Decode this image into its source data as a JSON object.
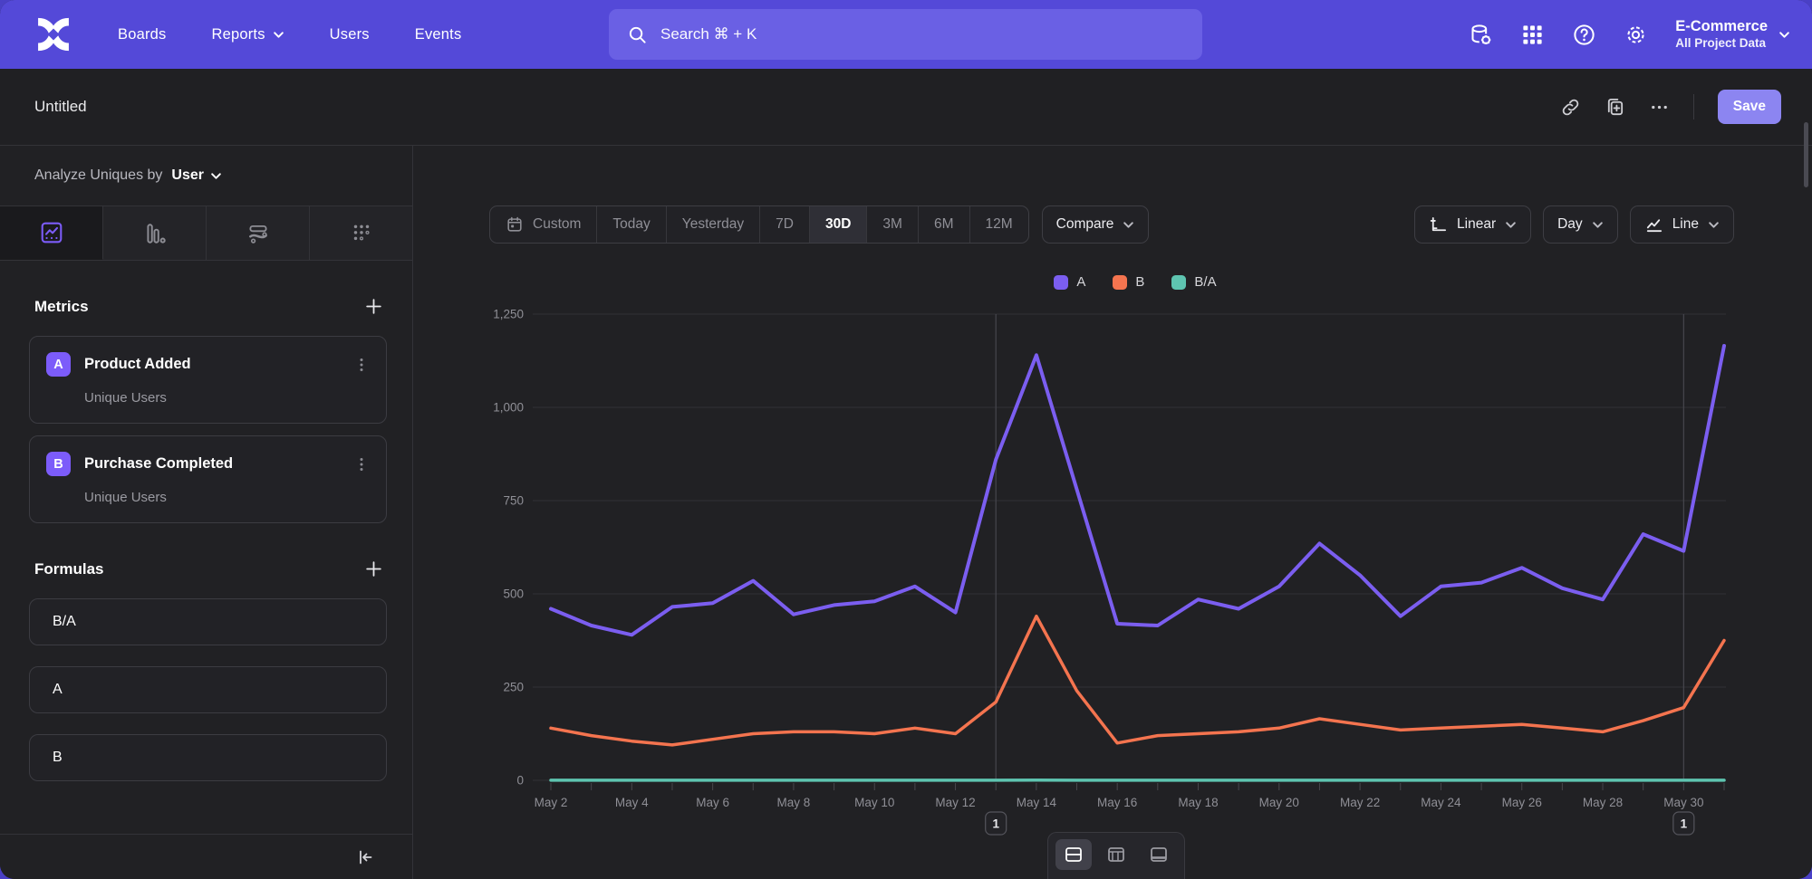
{
  "nav": {
    "items": [
      {
        "label": "Boards",
        "has_dropdown": false
      },
      {
        "label": "Reports",
        "has_dropdown": true
      },
      {
        "label": "Users",
        "has_dropdown": false
      },
      {
        "label": "Events",
        "has_dropdown": false
      }
    ],
    "search_placeholder": "Search  ⌘ + K",
    "right_icons": [
      "data-management-icon",
      "apps-grid-icon",
      "help-icon",
      "settings-gear-icon"
    ],
    "project": {
      "name": "E-Commerce",
      "scope": "All Project Data"
    }
  },
  "header": {
    "title": "Untitled",
    "action_icons": [
      "copy-link-icon",
      "duplicate-icon",
      "more-ellipsis-icon"
    ],
    "save_label": "Save"
  },
  "sidebar": {
    "analyze_prefix": "Analyze Uniques by",
    "analyze_value": "User",
    "chart_type_tabs": [
      "insights-line",
      "bar",
      "flows",
      "retention-dots"
    ],
    "selected_tab": 0,
    "metrics": {
      "title": "Metrics",
      "items": [
        {
          "letter": "A",
          "name": "Product Added",
          "subtitle": "Unique Users"
        },
        {
          "letter": "B",
          "name": "Purchase Completed",
          "subtitle": "Unique Users"
        }
      ]
    },
    "formulas": {
      "title": "Formulas",
      "items": [
        "B/A",
        "A",
        "B"
      ]
    }
  },
  "controls": {
    "date_ranges": [
      "Custom",
      "Today",
      "Yesterday",
      "7D",
      "30D",
      "3M",
      "6M",
      "12M"
    ],
    "selected_range": "30D",
    "compare_label": "Compare",
    "scale_label": "Linear",
    "interval_label": "Day",
    "chart_type_label": "Line"
  },
  "bottom_toolbar": {
    "views": [
      "chart-and-table-view",
      "table-view",
      "chart-only-view"
    ],
    "selected": 0
  },
  "colors": {
    "nav_purple": "#5449d8",
    "accent_purple": "#7b5ef0",
    "series_orange": "#f4744f",
    "series_teal": "#5ec4b0",
    "save_button": "#8c85f1"
  },
  "chart_data": {
    "type": "line",
    "x": [
      "May 2",
      "May 3",
      "May 4",
      "May 5",
      "May 6",
      "May 7",
      "May 8",
      "May 9",
      "May 10",
      "May 11",
      "May 12",
      "May 13",
      "May 14",
      "May 15",
      "May 16",
      "May 17",
      "May 18",
      "May 19",
      "May 20",
      "May 21",
      "May 22",
      "May 23",
      "May 24",
      "May 25",
      "May 26",
      "May 27",
      "May 28",
      "May 29",
      "May 30",
      "May 31"
    ],
    "label_every": 2,
    "ylim": [
      0,
      1250
    ],
    "yticks": [
      0,
      250,
      500,
      750,
      1000,
      1250
    ],
    "grid": true,
    "legend_position": "top-center",
    "series": [
      {
        "name": "A",
        "metric": "Product Added — Unique Users",
        "color": "#7b5ef0",
        "values": [
          460,
          415,
          390,
          465,
          475,
          535,
          445,
          470,
          480,
          520,
          450,
          860,
          1140,
          780,
          420,
          415,
          485,
          460,
          520,
          635,
          550,
          440,
          520,
          530,
          570,
          515,
          485,
          660,
          615,
          1165
        ]
      },
      {
        "name": "B",
        "metric": "Purchase Completed — Unique Users",
        "color": "#f4744f",
        "values": [
          140,
          120,
          105,
          95,
          110,
          125,
          130,
          130,
          125,
          140,
          125,
          210,
          440,
          240,
          100,
          120,
          125,
          130,
          140,
          165,
          150,
          135,
          140,
          145,
          150,
          140,
          130,
          160,
          195,
          375
        ]
      },
      {
        "name": "B/A",
        "metric": "Formula B/A (ratio, plotted near zero on this scale)",
        "color": "#5ec4b0",
        "values": [
          0.3,
          0.29,
          0.27,
          0.2,
          0.23,
          0.23,
          0.29,
          0.28,
          0.26,
          0.27,
          0.28,
          0.24,
          0.39,
          0.31,
          0.24,
          0.29,
          0.26,
          0.28,
          0.27,
          0.26,
          0.27,
          0.31,
          0.27,
          0.27,
          0.26,
          0.27,
          0.27,
          0.24,
          0.32,
          0.32
        ]
      }
    ],
    "annotations": [
      {
        "label": "1",
        "x": "May 13"
      },
      {
        "label": "1",
        "x": "May 30"
      }
    ]
  }
}
